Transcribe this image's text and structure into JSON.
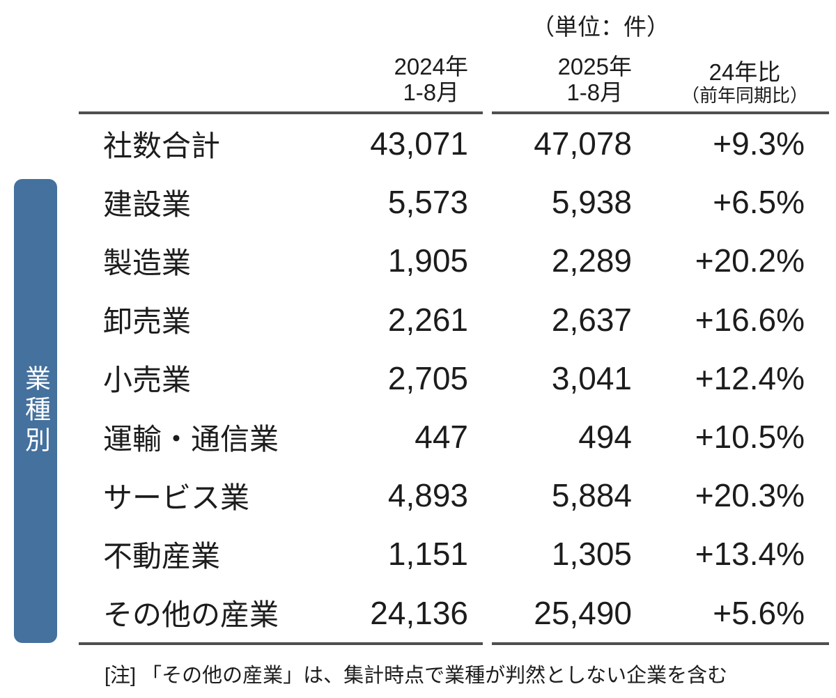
{
  "unit_label": "（単位：件）",
  "sidebar": {
    "label": "業種別"
  },
  "table": {
    "columns": [
      {
        "line1": "2024年",
        "line2": "1-8月"
      },
      {
        "line1": "2025年",
        "line2": "1-8月"
      },
      {
        "line1": "24年比",
        "line2": "（前年同期比）"
      }
    ],
    "rows": [
      {
        "label": "社数合計",
        "y2024": "43,071",
        "y2025": "47,078",
        "yoy": "+9.3%"
      },
      {
        "label": "建設業",
        "y2024": "5,573",
        "y2025": "5,938",
        "yoy": "+6.5%"
      },
      {
        "label": "製造業",
        "y2024": "1,905",
        "y2025": "2,289",
        "yoy": "+20.2%"
      },
      {
        "label": "卸売業",
        "y2024": "2,261",
        "y2025": "2,637",
        "yoy": "+16.6%"
      },
      {
        "label": "小売業",
        "y2024": "2,705",
        "y2025": "3,041",
        "yoy": "+12.4%"
      },
      {
        "label": "運輸・通信業",
        "y2024": "447",
        "y2025": "494",
        "yoy": "+10.5%"
      },
      {
        "label": "サービス業",
        "y2024": "4,893",
        "y2025": "5,884",
        "yoy": "+20.3%"
      },
      {
        "label": "不動産業",
        "y2024": "1,151",
        "y2025": "1,305",
        "yoy": "+13.4%"
      },
      {
        "label": "その他の産業",
        "y2024": "24,136",
        "y2025": "25,490",
        "yoy": "+5.6%"
      }
    ]
  },
  "note": "[注] 「その他の産業」は、集計時点で業種が判然としない企業を含む",
  "colors": {
    "sidebar_blue": "#44719e",
    "rule_gray": "#4f4f4f",
    "text": "#1c1c1c"
  },
  "chart_data": {
    "type": "table",
    "title": "（単位：件）",
    "group_label": "業種別",
    "columns": [
      "業種",
      "2024年1-8月",
      "2025年1-8月",
      "24年比（前年同期比）"
    ],
    "rows": [
      [
        "社数合計",
        43071,
        47078,
        "+9.3%"
      ],
      [
        "建設業",
        5573,
        5938,
        "+6.5%"
      ],
      [
        "製造業",
        1905,
        2289,
        "+20.2%"
      ],
      [
        "卸売業",
        2261,
        2637,
        "+16.6%"
      ],
      [
        "小売業",
        2705,
        3041,
        "+12.4%"
      ],
      [
        "運輸・通信業",
        447,
        494,
        "+10.5%"
      ],
      [
        "サービス業",
        4893,
        5884,
        "+20.3%"
      ],
      [
        "不動産業",
        1151,
        1305,
        "+13.4%"
      ],
      [
        "その他の産業",
        24136,
        25490,
        "+5.6%"
      ]
    ],
    "note": "[注] 「その他の産業」は、集計時点で業種が判然としない企業を含む"
  }
}
